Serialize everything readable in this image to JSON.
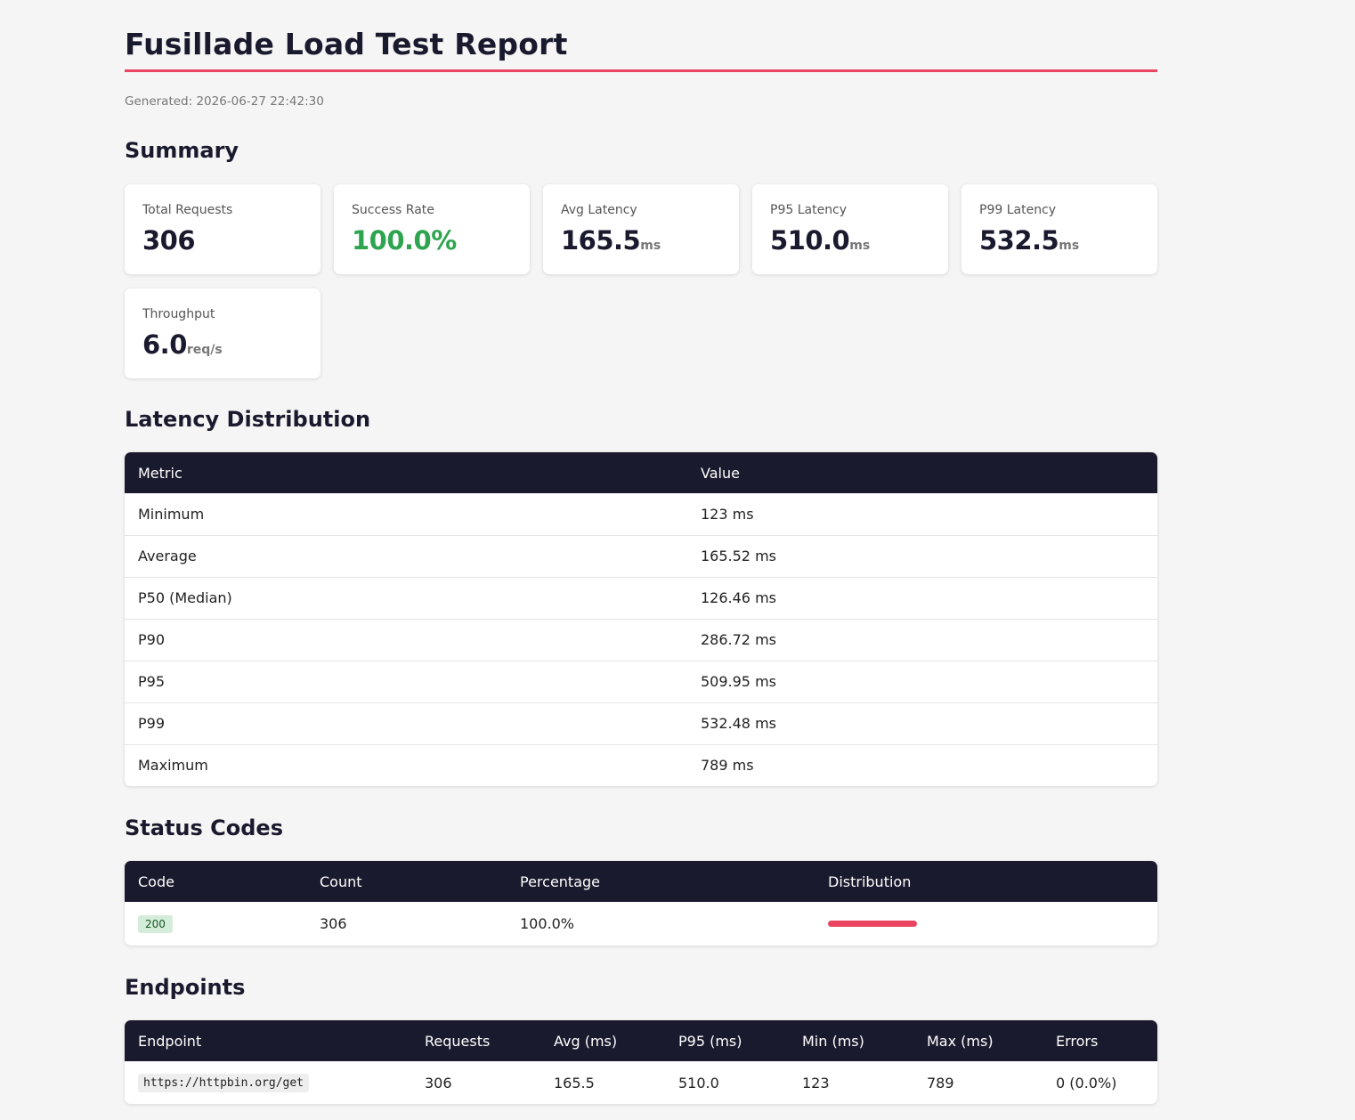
{
  "header": {
    "title": "Fusillade Load Test Report",
    "generated": "Generated: 2026-06-27 22:42:30"
  },
  "colors": {
    "accent": "#e94560",
    "dark": "#1a1a2e",
    "success": "#2ea44f"
  },
  "summary": {
    "heading": "Summary",
    "cards": [
      {
        "label": "Total Requests",
        "value": "306",
        "unit": ""
      },
      {
        "label": "Success Rate",
        "value": "100.0%",
        "unit": ""
      },
      {
        "label": "Avg Latency",
        "value": "165.5",
        "unit": "ms"
      },
      {
        "label": "P95 Latency",
        "value": "510.0",
        "unit": "ms"
      },
      {
        "label": "P99 Latency",
        "value": "532.5",
        "unit": "ms"
      },
      {
        "label": "Throughput",
        "value": "6.0",
        "unit": "req/s"
      }
    ]
  },
  "latency": {
    "heading": "Latency Distribution",
    "columns": [
      "Metric",
      "Value"
    ],
    "rows": [
      [
        "Minimum",
        "123 ms"
      ],
      [
        "Average",
        "165.52 ms"
      ],
      [
        "P50 (Median)",
        "126.46 ms"
      ],
      [
        "P90",
        "286.72 ms"
      ],
      [
        "P95",
        "509.95 ms"
      ],
      [
        "P99",
        "532.48 ms"
      ],
      [
        "Maximum",
        "789 ms"
      ]
    ]
  },
  "status": {
    "heading": "Status Codes",
    "columns": [
      "Code",
      "Count",
      "Percentage",
      "Distribution"
    ],
    "rows": [
      {
        "code": "200",
        "count": "306",
        "percentage": "100.0%",
        "fraction": 1.0
      }
    ]
  },
  "endpoints": {
    "heading": "Endpoints",
    "columns": [
      "Endpoint",
      "Requests",
      "Avg (ms)",
      "P95 (ms)",
      "Min (ms)",
      "Max (ms)",
      "Errors"
    ],
    "rows": [
      [
        "https://httpbin.org/get",
        "306",
        "165.5",
        "510.0",
        "123",
        "789",
        "0 (0.0%)"
      ]
    ]
  }
}
